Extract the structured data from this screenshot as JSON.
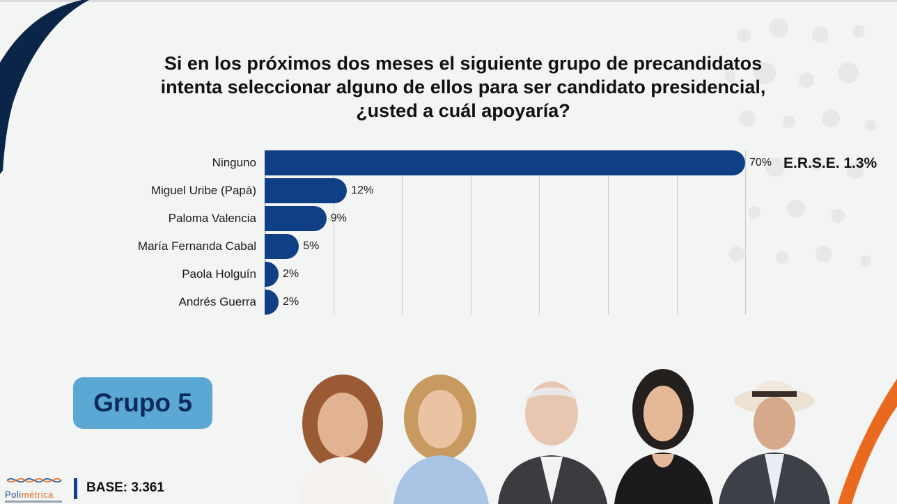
{
  "title_lines": [
    "Si en los próximos dos meses el siguiente grupo de precandidatos",
    "intenta seleccionar alguno de ellos para ser candidato presidencial,",
    "¿usted a cuál apoyaría?"
  ],
  "chart_data": {
    "type": "bar",
    "orientation": "horizontal",
    "categories": [
      "Ninguno",
      "Miguel Uribe (Papá)",
      "Paloma Valencia",
      "María Fernanda Cabal",
      "Paola Holguín",
      "Andrés Guerra"
    ],
    "values": [
      70,
      12,
      9,
      5,
      2,
      2
    ],
    "value_labels": [
      "70%",
      "12%",
      "9%",
      "5%",
      "2%",
      "2%"
    ],
    "unit": "%",
    "xlim": [
      0,
      70
    ],
    "grid": true,
    "bar_color": "#0f3f85"
  },
  "erse": "E.R.S.E. 1.3%",
  "group_label": "Grupo 5",
  "base": "BASE: 3.361",
  "logo": {
    "part1": "Poli",
    "part2": "métrica"
  },
  "colors": {
    "accent": "#0f3f85",
    "badge": "#5aa8d3",
    "orange": "#e96a1f",
    "navy": "#0b2a5c"
  }
}
